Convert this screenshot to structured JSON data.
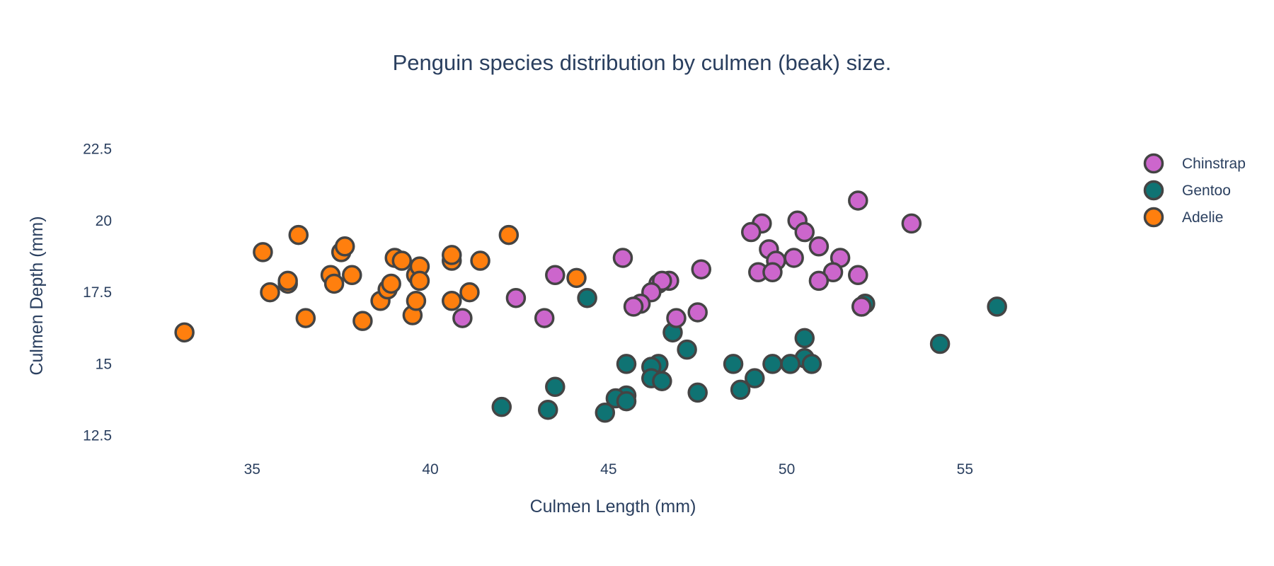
{
  "chart_data": {
    "type": "scatter",
    "title": "Penguin species distribution by culmen (beak) size.",
    "xlabel": "Culmen Length (mm)",
    "ylabel": "Culmen Depth (mm)",
    "xlim": [
      31.3,
      59.7
    ],
    "ylim": [
      11.9,
      23.5
    ],
    "x_ticks": [
      35,
      40,
      45,
      50,
      55
    ],
    "y_ticks": [
      12.5,
      15,
      17.5,
      20,
      22.5
    ],
    "y_tick_labels": [
      "12.5",
      "15",
      "17.5",
      "20",
      "22.5"
    ],
    "grid": false,
    "legend_position": "top-right",
    "series": [
      {
        "name": "Chinstrap",
        "color": "#CC66CC",
        "points": [
          [
            52.0,
            20.7
          ],
          [
            53.5,
            19.9
          ],
          [
            50.3,
            20.0
          ],
          [
            49.3,
            19.9
          ],
          [
            50.5,
            19.6
          ],
          [
            49.0,
            19.6
          ],
          [
            50.9,
            19.1
          ],
          [
            49.5,
            19.0
          ],
          [
            45.4,
            18.7
          ],
          [
            50.2,
            18.7
          ],
          [
            51.5,
            18.7
          ],
          [
            49.7,
            18.6
          ],
          [
            47.6,
            18.3
          ],
          [
            49.2,
            18.2
          ],
          [
            49.6,
            18.2
          ],
          [
            51.3,
            18.2
          ],
          [
            52.0,
            18.1
          ],
          [
            43.5,
            18.1
          ],
          [
            46.4,
            17.8
          ],
          [
            46.7,
            17.9
          ],
          [
            46.5,
            17.9
          ],
          [
            50.9,
            17.9
          ],
          [
            46.2,
            17.5
          ],
          [
            42.4,
            17.3
          ],
          [
            45.9,
            17.1
          ],
          [
            45.7,
            17.0
          ],
          [
            52.1,
            17.0
          ],
          [
            47.5,
            16.8
          ],
          [
            46.9,
            16.6
          ],
          [
            43.2,
            16.6
          ],
          [
            40.9,
            16.6
          ]
        ]
      },
      {
        "name": "Gentoo",
        "color": "#0F7373",
        "points": [
          [
            44.4,
            17.3
          ],
          [
            52.2,
            17.1
          ],
          [
            52.1,
            17.0
          ],
          [
            55.9,
            17.0
          ],
          [
            46.8,
            16.1
          ],
          [
            50.5,
            15.9
          ],
          [
            54.3,
            15.7
          ],
          [
            47.2,
            15.5
          ],
          [
            50.5,
            15.2
          ],
          [
            50.7,
            15.0
          ],
          [
            48.5,
            15.0
          ],
          [
            45.5,
            15.0
          ],
          [
            46.4,
            15.0
          ],
          [
            49.6,
            15.0
          ],
          [
            50.1,
            15.0
          ],
          [
            46.2,
            14.9
          ],
          [
            46.2,
            14.5
          ],
          [
            49.1,
            14.5
          ],
          [
            46.5,
            14.4
          ],
          [
            43.5,
            14.2
          ],
          [
            48.7,
            14.1
          ],
          [
            47.5,
            14.0
          ],
          [
            45.5,
            13.9
          ],
          [
            45.2,
            13.8
          ],
          [
            45.5,
            13.7
          ],
          [
            42.0,
            13.5
          ],
          [
            43.3,
            13.4
          ],
          [
            44.9,
            13.3
          ]
        ]
      },
      {
        "name": "Adelie",
        "color": "#FF7F0E",
        "points": [
          [
            33.1,
            16.1
          ],
          [
            35.3,
            18.9
          ],
          [
            35.5,
            17.5
          ],
          [
            36.0,
            17.8
          ],
          [
            36.0,
            17.9
          ],
          [
            36.3,
            19.5
          ],
          [
            36.5,
            16.6
          ],
          [
            37.2,
            18.1
          ],
          [
            37.3,
            17.8
          ],
          [
            37.5,
            18.9
          ],
          [
            37.6,
            19.1
          ],
          [
            37.8,
            18.1
          ],
          [
            38.1,
            16.5
          ],
          [
            38.6,
            17.2
          ],
          [
            38.8,
            17.6
          ],
          [
            38.9,
            17.8
          ],
          [
            39.0,
            18.7
          ],
          [
            39.2,
            18.6
          ],
          [
            39.5,
            16.7
          ],
          [
            39.6,
            17.2
          ],
          [
            39.6,
            18.1
          ],
          [
            39.7,
            18.4
          ],
          [
            39.7,
            17.9
          ],
          [
            40.6,
            18.6
          ],
          [
            40.6,
            18.8
          ],
          [
            40.6,
            17.2
          ],
          [
            41.1,
            17.5
          ],
          [
            41.4,
            18.6
          ],
          [
            42.2,
            19.5
          ],
          [
            44.1,
            18.0
          ]
        ]
      }
    ]
  }
}
